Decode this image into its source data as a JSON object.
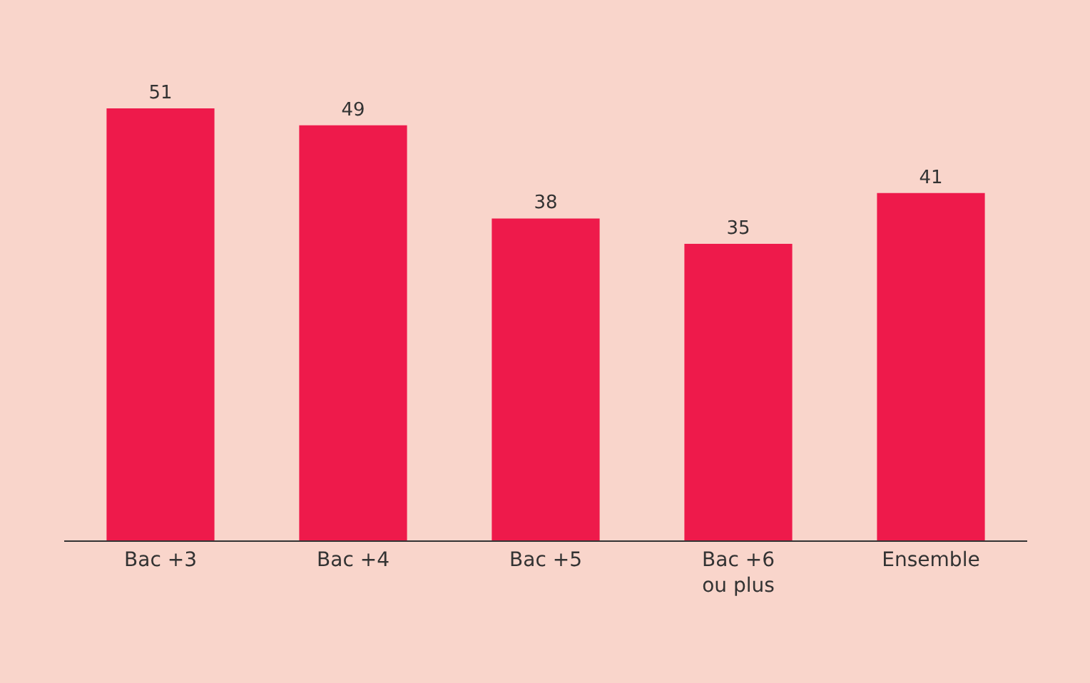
{
  "chart_data": {
    "type": "bar",
    "categories": [
      "Bac +3",
      "Bac +4",
      "Bac +5",
      "Bac +6\nou plus",
      "Ensemble"
    ],
    "values": [
      51,
      49,
      38,
      35,
      41
    ],
    "color": "#ee1a4b",
    "data_labels": true,
    "grid": false,
    "legend": false
  }
}
